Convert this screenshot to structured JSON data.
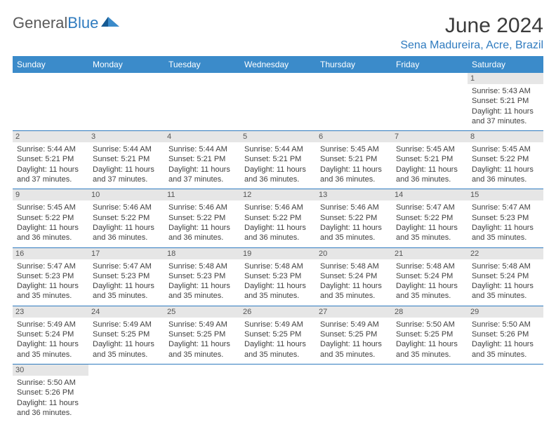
{
  "logo": {
    "text1": "General",
    "text2": "Blue"
  },
  "title": "June 2024",
  "location": "Sena Madureira, Acre, Brazil",
  "colors": {
    "header_bg": "#3b8bca",
    "accent": "#2f7bbf",
    "daynum_bg": "#e6e6e6",
    "text": "#404040",
    "page_bg": "#ffffff"
  },
  "day_headers": [
    "Sunday",
    "Monday",
    "Tuesday",
    "Wednesday",
    "Thursday",
    "Friday",
    "Saturday"
  ],
  "weeks": [
    [
      {
        "n": "",
        "lines": []
      },
      {
        "n": "",
        "lines": []
      },
      {
        "n": "",
        "lines": []
      },
      {
        "n": "",
        "lines": []
      },
      {
        "n": "",
        "lines": []
      },
      {
        "n": "",
        "lines": []
      },
      {
        "n": "1",
        "lines": [
          "Sunrise: 5:43 AM",
          "Sunset: 5:21 PM",
          "Daylight: 11 hours and 37 minutes."
        ]
      }
    ],
    [
      {
        "n": "2",
        "lines": [
          "Sunrise: 5:44 AM",
          "Sunset: 5:21 PM",
          "Daylight: 11 hours and 37 minutes."
        ]
      },
      {
        "n": "3",
        "lines": [
          "Sunrise: 5:44 AM",
          "Sunset: 5:21 PM",
          "Daylight: 11 hours and 37 minutes."
        ]
      },
      {
        "n": "4",
        "lines": [
          "Sunrise: 5:44 AM",
          "Sunset: 5:21 PM",
          "Daylight: 11 hours and 37 minutes."
        ]
      },
      {
        "n": "5",
        "lines": [
          "Sunrise: 5:44 AM",
          "Sunset: 5:21 PM",
          "Daylight: 11 hours and 36 minutes."
        ]
      },
      {
        "n": "6",
        "lines": [
          "Sunrise: 5:45 AM",
          "Sunset: 5:21 PM",
          "Daylight: 11 hours and 36 minutes."
        ]
      },
      {
        "n": "7",
        "lines": [
          "Sunrise: 5:45 AM",
          "Sunset: 5:21 PM",
          "Daylight: 11 hours and 36 minutes."
        ]
      },
      {
        "n": "8",
        "lines": [
          "Sunrise: 5:45 AM",
          "Sunset: 5:22 PM",
          "Daylight: 11 hours and 36 minutes."
        ]
      }
    ],
    [
      {
        "n": "9",
        "lines": [
          "Sunrise: 5:45 AM",
          "Sunset: 5:22 PM",
          "Daylight: 11 hours and 36 minutes."
        ]
      },
      {
        "n": "10",
        "lines": [
          "Sunrise: 5:46 AM",
          "Sunset: 5:22 PM",
          "Daylight: 11 hours and 36 minutes."
        ]
      },
      {
        "n": "11",
        "lines": [
          "Sunrise: 5:46 AM",
          "Sunset: 5:22 PM",
          "Daylight: 11 hours and 36 minutes."
        ]
      },
      {
        "n": "12",
        "lines": [
          "Sunrise: 5:46 AM",
          "Sunset: 5:22 PM",
          "Daylight: 11 hours and 36 minutes."
        ]
      },
      {
        "n": "13",
        "lines": [
          "Sunrise: 5:46 AM",
          "Sunset: 5:22 PM",
          "Daylight: 11 hours and 35 minutes."
        ]
      },
      {
        "n": "14",
        "lines": [
          "Sunrise: 5:47 AM",
          "Sunset: 5:22 PM",
          "Daylight: 11 hours and 35 minutes."
        ]
      },
      {
        "n": "15",
        "lines": [
          "Sunrise: 5:47 AM",
          "Sunset: 5:23 PM",
          "Daylight: 11 hours and 35 minutes."
        ]
      }
    ],
    [
      {
        "n": "16",
        "lines": [
          "Sunrise: 5:47 AM",
          "Sunset: 5:23 PM",
          "Daylight: 11 hours and 35 minutes."
        ]
      },
      {
        "n": "17",
        "lines": [
          "Sunrise: 5:47 AM",
          "Sunset: 5:23 PM",
          "Daylight: 11 hours and 35 minutes."
        ]
      },
      {
        "n": "18",
        "lines": [
          "Sunrise: 5:48 AM",
          "Sunset: 5:23 PM",
          "Daylight: 11 hours and 35 minutes."
        ]
      },
      {
        "n": "19",
        "lines": [
          "Sunrise: 5:48 AM",
          "Sunset: 5:23 PM",
          "Daylight: 11 hours and 35 minutes."
        ]
      },
      {
        "n": "20",
        "lines": [
          "Sunrise: 5:48 AM",
          "Sunset: 5:24 PM",
          "Daylight: 11 hours and 35 minutes."
        ]
      },
      {
        "n": "21",
        "lines": [
          "Sunrise: 5:48 AM",
          "Sunset: 5:24 PM",
          "Daylight: 11 hours and 35 minutes."
        ]
      },
      {
        "n": "22",
        "lines": [
          "Sunrise: 5:48 AM",
          "Sunset: 5:24 PM",
          "Daylight: 11 hours and 35 minutes."
        ]
      }
    ],
    [
      {
        "n": "23",
        "lines": [
          "Sunrise: 5:49 AM",
          "Sunset: 5:24 PM",
          "Daylight: 11 hours and 35 minutes."
        ]
      },
      {
        "n": "24",
        "lines": [
          "Sunrise: 5:49 AM",
          "Sunset: 5:25 PM",
          "Daylight: 11 hours and 35 minutes."
        ]
      },
      {
        "n": "25",
        "lines": [
          "Sunrise: 5:49 AM",
          "Sunset: 5:25 PM",
          "Daylight: 11 hours and 35 minutes."
        ]
      },
      {
        "n": "26",
        "lines": [
          "Sunrise: 5:49 AM",
          "Sunset: 5:25 PM",
          "Daylight: 11 hours and 35 minutes."
        ]
      },
      {
        "n": "27",
        "lines": [
          "Sunrise: 5:49 AM",
          "Sunset: 5:25 PM",
          "Daylight: 11 hours and 35 minutes."
        ]
      },
      {
        "n": "28",
        "lines": [
          "Sunrise: 5:50 AM",
          "Sunset: 5:25 PM",
          "Daylight: 11 hours and 35 minutes."
        ]
      },
      {
        "n": "29",
        "lines": [
          "Sunrise: 5:50 AM",
          "Sunset: 5:26 PM",
          "Daylight: 11 hours and 35 minutes."
        ]
      }
    ],
    [
      {
        "n": "30",
        "lines": [
          "Sunrise: 5:50 AM",
          "Sunset: 5:26 PM",
          "Daylight: 11 hours and 36 minutes."
        ]
      },
      {
        "n": "",
        "lines": []
      },
      {
        "n": "",
        "lines": []
      },
      {
        "n": "",
        "lines": []
      },
      {
        "n": "",
        "lines": []
      },
      {
        "n": "",
        "lines": []
      },
      {
        "n": "",
        "lines": []
      }
    ]
  ]
}
